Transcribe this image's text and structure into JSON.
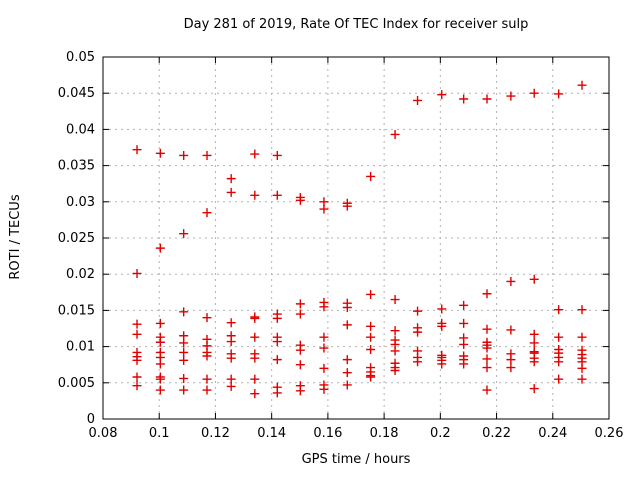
{
  "title": "Day 281 of 2019, Rate Of TEC Index for receiver sulp",
  "chart_data": {
    "type": "scatter",
    "title": "Day 281 of 2019, Rate Of TEC Index for receiver sulp",
    "xlabel": "GPS time / hours",
    "ylabel": "ROTI / TECUs",
    "xlim": [
      0.08,
      0.26
    ],
    "ylim": [
      0,
      0.05
    ],
    "grid": true,
    "legend": "none",
    "marker": "plus",
    "marker_color": "#e00000",
    "grid_color": "#b3b3b3",
    "xticks": {
      "values": [
        0.08,
        0.1,
        0.12,
        0.14,
        0.16,
        0.18,
        0.2,
        0.22,
        0.24,
        0.26
      ],
      "labels": [
        "0.08",
        "0.1",
        "0.12",
        "0.14",
        "0.16",
        "0.18",
        "0.2",
        "0.22",
        "0.24",
        "0.26"
      ]
    },
    "yticks": {
      "values": [
        0,
        0.005,
        0.01,
        0.015,
        0.02,
        0.025,
        0.03,
        0.035,
        0.04,
        0.045,
        0.05
      ],
      "labels": [
        "0",
        "0.005",
        "0.01",
        "0.015",
        "0.02",
        "0.025",
        "0.03",
        "0.035",
        "0.04",
        "0.045",
        "0.05"
      ]
    },
    "series": [
      {
        "name": "ROTI",
        "points": [
          [
            0.0921,
            0.0372
          ],
          [
            0.0921,
            0.0201
          ],
          [
            0.0921,
            0.0131
          ],
          [
            0.0921,
            0.0117
          ],
          [
            0.0921,
            0.0092
          ],
          [
            0.0921,
            0.0086
          ],
          [
            0.0921,
            0.0081
          ],
          [
            0.0921,
            0.0058
          ],
          [
            0.0921,
            0.0046
          ],
          [
            0.1004,
            0.0367
          ],
          [
            0.1004,
            0.0236
          ],
          [
            0.1004,
            0.0132
          ],
          [
            0.1004,
            0.0113
          ],
          [
            0.1004,
            0.0106
          ],
          [
            0.1004,
            0.0092
          ],
          [
            0.1004,
            0.0085
          ],
          [
            0.1004,
            0.0076
          ],
          [
            0.1004,
            0.0058
          ],
          [
            0.1004,
            0.0055
          ],
          [
            0.1004,
            0.004
          ],
          [
            0.1087,
            0.0364
          ],
          [
            0.1087,
            0.0256
          ],
          [
            0.1087,
            0.0148
          ],
          [
            0.1087,
            0.0115
          ],
          [
            0.1087,
            0.0105
          ],
          [
            0.1087,
            0.0092
          ],
          [
            0.1087,
            0.0081
          ],
          [
            0.1087,
            0.0056
          ],
          [
            0.1087,
            0.004
          ],
          [
            0.117,
            0.0364
          ],
          [
            0.117,
            0.0285
          ],
          [
            0.117,
            0.014
          ],
          [
            0.117,
            0.011
          ],
          [
            0.117,
            0.0101
          ],
          [
            0.117,
            0.0092
          ],
          [
            0.117,
            0.0087
          ],
          [
            0.117,
            0.0055
          ],
          [
            0.117,
            0.004
          ],
          [
            0.1256,
            0.0332
          ],
          [
            0.1256,
            0.0313
          ],
          [
            0.1256,
            0.0133
          ],
          [
            0.1256,
            0.0115
          ],
          [
            0.1256,
            0.0107
          ],
          [
            0.1256,
            0.009
          ],
          [
            0.1256,
            0.0084
          ],
          [
            0.1256,
            0.0055
          ],
          [
            0.1256,
            0.0045
          ],
          [
            0.134,
            0.0366
          ],
          [
            0.134,
            0.0309
          ],
          [
            0.134,
            0.0141
          ],
          [
            0.134,
            0.0139
          ],
          [
            0.134,
            0.0113
          ],
          [
            0.134,
            0.009
          ],
          [
            0.134,
            0.0084
          ],
          [
            0.134,
            0.0055
          ],
          [
            0.134,
            0.0035
          ],
          [
            0.142,
            0.0364
          ],
          [
            0.142,
            0.0309
          ],
          [
            0.142,
            0.0145
          ],
          [
            0.142,
            0.0139
          ],
          [
            0.142,
            0.0113
          ],
          [
            0.142,
            0.0107
          ],
          [
            0.142,
            0.0082
          ],
          [
            0.142,
            0.0044
          ],
          [
            0.142,
            0.0036
          ],
          [
            0.1502,
            0.0306
          ],
          [
            0.1502,
            0.0302
          ],
          [
            0.1502,
            0.0159
          ],
          [
            0.1502,
            0.0145
          ],
          [
            0.1502,
            0.0102
          ],
          [
            0.1502,
            0.0095
          ],
          [
            0.1502,
            0.0075
          ],
          [
            0.1502,
            0.0046
          ],
          [
            0.1502,
            0.0039
          ],
          [
            0.1586,
            0.03
          ],
          [
            0.1586,
            0.029
          ],
          [
            0.1586,
            0.0161
          ],
          [
            0.1586,
            0.0155
          ],
          [
            0.1586,
            0.0113
          ],
          [
            0.1586,
            0.0098
          ],
          [
            0.1586,
            0.007
          ],
          [
            0.1586,
            0.0047
          ],
          [
            0.1586,
            0.0041
          ],
          [
            0.1669,
            0.0298
          ],
          [
            0.1669,
            0.0294
          ],
          [
            0.1669,
            0.016
          ],
          [
            0.1669,
            0.0154
          ],
          [
            0.1669,
            0.013
          ],
          [
            0.1669,
            0.0082
          ],
          [
            0.1669,
            0.0064
          ],
          [
            0.1669,
            0.0047
          ],
          [
            0.1752,
            0.0335
          ],
          [
            0.1752,
            0.0172
          ],
          [
            0.1752,
            0.0128
          ],
          [
            0.1752,
            0.0113
          ],
          [
            0.1752,
            0.0096
          ],
          [
            0.1752,
            0.0071
          ],
          [
            0.1752,
            0.0065
          ],
          [
            0.1752,
            0.006
          ],
          [
            0.1752,
            0.0058
          ],
          [
            0.1839,
            0.0393
          ],
          [
            0.1839,
            0.0165
          ],
          [
            0.1839,
            0.0122
          ],
          [
            0.1839,
            0.0109
          ],
          [
            0.1839,
            0.0103
          ],
          [
            0.1839,
            0.0094
          ],
          [
            0.1839,
            0.0077
          ],
          [
            0.1839,
            0.0071
          ],
          [
            0.1839,
            0.0067
          ],
          [
            0.1919,
            0.044
          ],
          [
            0.1919,
            0.0149
          ],
          [
            0.1919,
            0.0126
          ],
          [
            0.1919,
            0.012
          ],
          [
            0.1919,
            0.0094
          ],
          [
            0.1919,
            0.0085
          ],
          [
            0.1919,
            0.0079
          ],
          [
            0.2005,
            0.0448
          ],
          [
            0.2005,
            0.0152
          ],
          [
            0.2005,
            0.0132
          ],
          [
            0.2005,
            0.0128
          ],
          [
            0.2005,
            0.0088
          ],
          [
            0.2005,
            0.0085
          ],
          [
            0.2005,
            0.0081
          ],
          [
            0.2005,
            0.0076
          ],
          [
            0.2083,
            0.0442
          ],
          [
            0.2083,
            0.0157
          ],
          [
            0.2083,
            0.0132
          ],
          [
            0.2083,
            0.0112
          ],
          [
            0.2083,
            0.0103
          ],
          [
            0.2083,
            0.0087
          ],
          [
            0.2083,
            0.0082
          ],
          [
            0.2083,
            0.0076
          ],
          [
            0.2166,
            0.0442
          ],
          [
            0.2166,
            0.0173
          ],
          [
            0.2166,
            0.0124
          ],
          [
            0.2166,
            0.0106
          ],
          [
            0.2166,
            0.0102
          ],
          [
            0.2166,
            0.0098
          ],
          [
            0.2166,
            0.0083
          ],
          [
            0.2166,
            0.0071
          ],
          [
            0.2166,
            0.004
          ],
          [
            0.2251,
            0.0446
          ],
          [
            0.2251,
            0.019
          ],
          [
            0.2251,
            0.0123
          ],
          [
            0.2251,
            0.009
          ],
          [
            0.2251,
            0.0082
          ],
          [
            0.2251,
            0.0071
          ],
          [
            0.2334,
            0.045
          ],
          [
            0.2334,
            0.0193
          ],
          [
            0.2334,
            0.0117
          ],
          [
            0.2334,
            0.0105
          ],
          [
            0.2334,
            0.0093
          ],
          [
            0.2334,
            0.0091
          ],
          [
            0.2334,
            0.0084
          ],
          [
            0.2334,
            0.0079
          ],
          [
            0.2334,
            0.0042
          ],
          [
            0.2421,
            0.0449
          ],
          [
            0.2421,
            0.0151
          ],
          [
            0.2421,
            0.0113
          ],
          [
            0.2421,
            0.0096
          ],
          [
            0.2421,
            0.0091
          ],
          [
            0.2421,
            0.0085
          ],
          [
            0.2421,
            0.0079
          ],
          [
            0.2421,
            0.0055
          ],
          [
            0.2504,
            0.0461
          ],
          [
            0.2504,
            0.0151
          ],
          [
            0.2504,
            0.0113
          ],
          [
            0.2504,
            0.0095
          ],
          [
            0.2504,
            0.0089
          ],
          [
            0.2504,
            0.0084
          ],
          [
            0.2504,
            0.0079
          ],
          [
            0.2504,
            0.007
          ],
          [
            0.2504,
            0.0055
          ]
        ]
      }
    ]
  }
}
